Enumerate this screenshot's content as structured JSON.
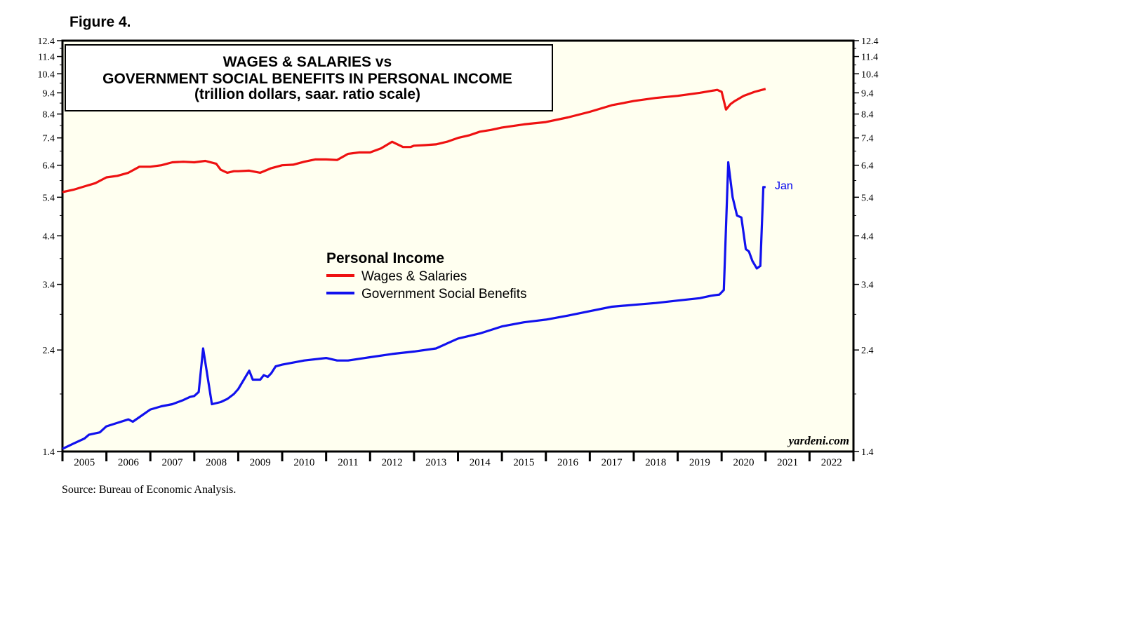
{
  "figure_label": "Figure 4.",
  "source": "Source: Bureau of Economic Analysis.",
  "credit": "yardeni.com",
  "colors": {
    "background": "#fffff0",
    "wages": "#ee1111",
    "benefits": "#1111ee",
    "annotation": "#0000ee"
  },
  "chart_data": {
    "type": "line",
    "title": [
      "WAGES & SALARIES vs",
      "GOVERNMENT SOCIAL BENEFITS IN PERSONAL INCOME",
      "(trillion dollars, saar. ratio scale)"
    ],
    "xlabel": "",
    "ylabel": "",
    "yscale": "log",
    "ylim": [
      1.4,
      12.4
    ],
    "xlim": [
      2005.0,
      2023.0
    ],
    "y_ticks": [
      "12.4",
      "11.4",
      "10.4",
      "9.4",
      "8.4",
      "7.4",
      "6.4",
      "5.4",
      "4.4",
      "3.4",
      "2.4",
      "1.4"
    ],
    "x_ticks": [
      "2005",
      "2006",
      "2007",
      "2008",
      "2009",
      "2010",
      "2011",
      "2012",
      "2013",
      "2014",
      "2015",
      "2016",
      "2017",
      "2018",
      "2019",
      "2020",
      "2021",
      "2022"
    ],
    "legend": {
      "title": "Personal Income",
      "placement": "center"
    },
    "annotation": "Jan",
    "series": [
      {
        "name": "Wages & Salaries",
        "color": "#ee1111",
        "x": [
          2005.0,
          2005.25,
          2005.5,
          2005.75,
          2006.0,
          2006.25,
          2006.5,
          2006.75,
          2007.0,
          2007.25,
          2007.5,
          2007.75,
          2008.0,
          2008.25,
          2008.5,
          2008.6,
          2008.75,
          2008.9,
          2009.0,
          2009.25,
          2009.5,
          2009.75,
          2010.0,
          2010.25,
          2010.5,
          2010.75,
          2011.0,
          2011.25,
          2011.5,
          2011.75,
          2012.0,
          2012.25,
          2012.5,
          2012.75,
          2012.92,
          2013.0,
          2013.25,
          2013.5,
          2013.75,
          2014.0,
          2014.25,
          2014.5,
          2014.75,
          2015.0,
          2015.5,
          2016.0,
          2016.5,
          2017.0,
          2017.5,
          2018.0,
          2018.5,
          2019.0,
          2019.5,
          2019.9,
          2020.0,
          2020.1,
          2020.2,
          2020.3,
          2020.5,
          2020.75,
          2021.0
        ],
        "values": [
          5.55,
          5.62,
          5.72,
          5.82,
          6.0,
          6.05,
          6.15,
          6.35,
          6.35,
          6.4,
          6.5,
          6.52,
          6.5,
          6.55,
          6.45,
          6.25,
          6.15,
          6.2,
          6.2,
          6.22,
          6.15,
          6.3,
          6.4,
          6.42,
          6.52,
          6.6,
          6.6,
          6.58,
          6.8,
          6.85,
          6.85,
          7.0,
          7.25,
          7.05,
          7.05,
          7.1,
          7.12,
          7.15,
          7.25,
          7.4,
          7.5,
          7.65,
          7.72,
          7.82,
          7.95,
          8.05,
          8.25,
          8.5,
          8.8,
          9.0,
          9.15,
          9.25,
          9.4,
          9.55,
          9.45,
          8.6,
          8.85,
          9.0,
          9.25,
          9.45,
          9.6
        ]
      },
      {
        "name": "Government Social Benefits",
        "color": "#1111ee",
        "x": [
          2005.0,
          2005.25,
          2005.5,
          2005.6,
          2005.85,
          2006.0,
          2006.25,
          2006.5,
          2006.6,
          2006.75,
          2007.0,
          2007.25,
          2007.5,
          2007.75,
          2007.9,
          2008.0,
          2008.1,
          2008.2,
          2008.4,
          2008.6,
          2008.75,
          2008.9,
          2009.0,
          2009.25,
          2009.33,
          2009.42,
          2009.5,
          2009.58,
          2009.67,
          2009.75,
          2009.85,
          2010.0,
          2010.5,
          2011.0,
          2011.25,
          2011.5,
          2011.75,
          2012.0,
          2012.5,
          2013.0,
          2013.5,
          2014.0,
          2014.5,
          2015.0,
          2015.5,
          2016.0,
          2016.5,
          2017.0,
          2017.5,
          2018.0,
          2018.5,
          2019.0,
          2019.5,
          2019.75,
          2019.95,
          2020.05,
          2020.15,
          2020.25,
          2020.35,
          2020.45,
          2020.55,
          2020.62,
          2020.7,
          2020.8,
          2020.88,
          2020.95,
          2021.0
        ],
        "values": [
          1.42,
          1.46,
          1.5,
          1.53,
          1.55,
          1.6,
          1.63,
          1.66,
          1.64,
          1.68,
          1.75,
          1.78,
          1.8,
          1.84,
          1.87,
          1.88,
          1.92,
          2.42,
          1.8,
          1.82,
          1.85,
          1.9,
          1.95,
          2.15,
          2.05,
          2.05,
          2.05,
          2.1,
          2.08,
          2.12,
          2.2,
          2.22,
          2.27,
          2.3,
          2.27,
          2.27,
          2.29,
          2.31,
          2.35,
          2.38,
          2.42,
          2.55,
          2.62,
          2.72,
          2.78,
          2.82,
          2.88,
          2.95,
          3.02,
          3.05,
          3.08,
          3.12,
          3.16,
          3.2,
          3.22,
          3.3,
          6.5,
          5.4,
          4.9,
          4.85,
          4.1,
          4.05,
          3.85,
          3.7,
          3.75,
          5.7,
          5.7
        ]
      }
    ]
  }
}
